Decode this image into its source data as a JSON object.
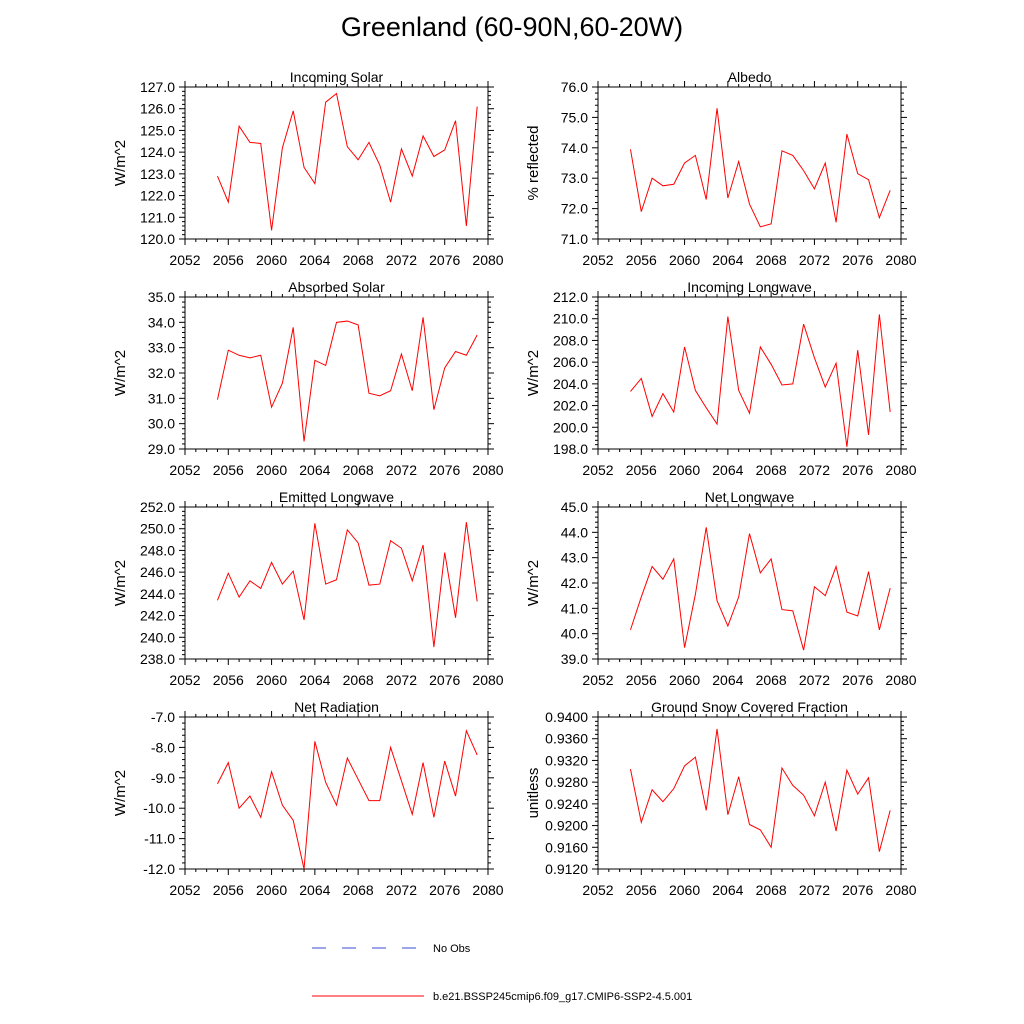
{
  "title": "Greenland (60-90N,60-20W)",
  "legend": {
    "obs_label": "No Obs",
    "model_label": "b.e21.BSSP245cmip6.f09_g17.CMIP6-SSP2-4.5.001",
    "obs_color": "#3b4bd6",
    "model_color": "#ff0000"
  },
  "chart_data": [
    {
      "type": "line",
      "title": "Incoming Solar",
      "ylabel": "W/m^2",
      "xlim": [
        2052,
        2080
      ],
      "ylim": [
        120.0,
        127.0
      ],
      "yticks": [
        120.0,
        121.0,
        122.0,
        123.0,
        124.0,
        125.0,
        126.0,
        127.0
      ],
      "xticks": [
        2052,
        2056,
        2060,
        2064,
        2068,
        2072,
        2076,
        2080
      ],
      "ytick_decimals": 1,
      "series": [
        {
          "x": [
            2055,
            2056,
            2057,
            2058,
            2059,
            2060,
            2061,
            2062,
            2063,
            2064,
            2065,
            2066,
            2067,
            2068,
            2069,
            2070,
            2071,
            2072,
            2073,
            2074,
            2075,
            2076,
            2077,
            2078,
            2079
          ],
          "values": [
            122.9,
            121.7,
            125.2,
            124.45,
            124.4,
            120.4,
            124.2,
            125.9,
            123.3,
            122.55,
            126.3,
            126.7,
            124.25,
            123.65,
            124.45,
            123.4,
            121.7,
            124.15,
            122.9,
            124.75,
            123.8,
            124.1,
            125.45,
            120.6,
            126.1
          ]
        }
      ]
    },
    {
      "type": "line",
      "title": "Albedo",
      "ylabel": "% reflected",
      "xlim": [
        2052,
        2080
      ],
      "ylim": [
        71.0,
        76.0
      ],
      "yticks": [
        71.0,
        72.0,
        73.0,
        74.0,
        75.0,
        76.0
      ],
      "xticks": [
        2052,
        2056,
        2060,
        2064,
        2068,
        2072,
        2076,
        2080
      ],
      "ytick_decimals": 1,
      "series": [
        {
          "x": [
            2055,
            2056,
            2057,
            2058,
            2059,
            2060,
            2061,
            2062,
            2063,
            2064,
            2065,
            2066,
            2067,
            2068,
            2069,
            2070,
            2071,
            2072,
            2073,
            2074,
            2075,
            2076,
            2077,
            2078,
            2079
          ],
          "values": [
            73.95,
            71.9,
            73.0,
            72.75,
            72.8,
            73.5,
            73.75,
            72.3,
            75.3,
            72.35,
            73.55,
            72.15,
            71.4,
            71.5,
            73.9,
            73.75,
            73.25,
            72.65,
            73.5,
            71.55,
            74.45,
            73.15,
            72.95,
            71.7,
            72.6
          ]
        }
      ]
    },
    {
      "type": "line",
      "title": "Absorbed Solar",
      "ylabel": "W/m^2",
      "xlim": [
        2052,
        2080
      ],
      "ylim": [
        29.0,
        35.0
      ],
      "yticks": [
        29.0,
        30.0,
        31.0,
        32.0,
        33.0,
        34.0,
        35.0
      ],
      "xticks": [
        2052,
        2056,
        2060,
        2064,
        2068,
        2072,
        2076,
        2080
      ],
      "ytick_decimals": 1,
      "series": [
        {
          "x": [
            2055,
            2056,
            2057,
            2058,
            2059,
            2060,
            2061,
            2062,
            2063,
            2064,
            2065,
            2066,
            2067,
            2068,
            2069,
            2070,
            2071,
            2072,
            2073,
            2074,
            2075,
            2076,
            2077,
            2078,
            2079
          ],
          "values": [
            30.95,
            32.9,
            32.7,
            32.6,
            32.7,
            30.65,
            31.6,
            33.8,
            29.3,
            32.5,
            32.3,
            34.0,
            34.05,
            33.9,
            31.2,
            31.1,
            31.3,
            32.75,
            31.3,
            34.2,
            30.55,
            32.2,
            32.85,
            32.7,
            33.5
          ]
        }
      ]
    },
    {
      "type": "line",
      "title": "Incoming Longwave",
      "ylabel": "W/m^2",
      "xlim": [
        2052,
        2080
      ],
      "ylim": [
        198.0,
        212.0
      ],
      "yticks": [
        198.0,
        200.0,
        202.0,
        204.0,
        206.0,
        208.0,
        210.0,
        212.0
      ],
      "xticks": [
        2052,
        2056,
        2060,
        2064,
        2068,
        2072,
        2076,
        2080
      ],
      "ytick_decimals": 1,
      "series": [
        {
          "x": [
            2055,
            2056,
            2057,
            2058,
            2059,
            2060,
            2061,
            2062,
            2063,
            2064,
            2065,
            2066,
            2067,
            2068,
            2069,
            2070,
            2071,
            2072,
            2073,
            2074,
            2075,
            2076,
            2077,
            2078,
            2079
          ],
          "values": [
            203.3,
            204.5,
            201.0,
            203.1,
            201.4,
            207.4,
            203.4,
            201.8,
            200.3,
            210.2,
            203.4,
            201.3,
            207.4,
            205.8,
            203.9,
            204.0,
            209.5,
            206.4,
            203.7,
            205.9,
            198.2,
            207.1,
            199.3,
            210.4,
            201.4
          ]
        }
      ]
    },
    {
      "type": "line",
      "title": "Emitted Longwave",
      "ylabel": "W/m^2",
      "xlim": [
        2052,
        2080
      ],
      "ylim": [
        238.0,
        252.0
      ],
      "yticks": [
        238.0,
        240.0,
        242.0,
        244.0,
        246.0,
        248.0,
        250.0,
        252.0
      ],
      "xticks": [
        2052,
        2056,
        2060,
        2064,
        2068,
        2072,
        2076,
        2080
      ],
      "ytick_decimals": 1,
      "series": [
        {
          "x": [
            2055,
            2056,
            2057,
            2058,
            2059,
            2060,
            2061,
            2062,
            2063,
            2064,
            2065,
            2066,
            2067,
            2068,
            2069,
            2070,
            2071,
            2072,
            2073,
            2074,
            2075,
            2076,
            2077,
            2078,
            2079
          ],
          "values": [
            243.4,
            245.9,
            243.7,
            245.2,
            244.5,
            246.9,
            244.9,
            246.1,
            241.6,
            250.5,
            244.9,
            245.3,
            249.9,
            248.7,
            244.8,
            244.9,
            248.9,
            248.2,
            245.2,
            248.5,
            239.1,
            247.8,
            241.8,
            250.6,
            243.3
          ]
        }
      ]
    },
    {
      "type": "line",
      "title": "Net Longwave",
      "ylabel": "W/m^2",
      "xlim": [
        2052,
        2080
      ],
      "ylim": [
        39.0,
        45.0
      ],
      "yticks": [
        39.0,
        40.0,
        41.0,
        42.0,
        43.0,
        44.0,
        45.0
      ],
      "xticks": [
        2052,
        2056,
        2060,
        2064,
        2068,
        2072,
        2076,
        2080
      ],
      "ytick_decimals": 1,
      "series": [
        {
          "x": [
            2055,
            2056,
            2057,
            2058,
            2059,
            2060,
            2061,
            2062,
            2063,
            2064,
            2065,
            2066,
            2067,
            2068,
            2069,
            2070,
            2071,
            2072,
            2073,
            2074,
            2075,
            2076,
            2077,
            2078,
            2079
          ],
          "values": [
            40.15,
            41.45,
            42.65,
            42.15,
            42.95,
            39.45,
            41.55,
            44.2,
            41.3,
            40.3,
            41.45,
            43.95,
            42.4,
            42.95,
            40.95,
            40.9,
            39.35,
            41.85,
            41.5,
            42.65,
            40.85,
            40.7,
            42.45,
            40.15,
            41.8
          ]
        }
      ]
    },
    {
      "type": "line",
      "title": "Net Radiation",
      "ylabel": "W/m^2",
      "xlim": [
        2052,
        2080
      ],
      "ylim": [
        -12.0,
        -7.0
      ],
      "yticks": [
        -12.0,
        -11.0,
        -10.0,
        -9.0,
        -8.0,
        -7.0
      ],
      "xticks": [
        2052,
        2056,
        2060,
        2064,
        2068,
        2072,
        2076,
        2080
      ],
      "ytick_decimals": 1,
      "series": [
        {
          "x": [
            2055,
            2056,
            2057,
            2058,
            2059,
            2060,
            2061,
            2062,
            2063,
            2064,
            2065,
            2066,
            2067,
            2068,
            2069,
            2070,
            2071,
            2072,
            2073,
            2074,
            2075,
            2076,
            2077,
            2078,
            2079
          ],
          "values": [
            -9.2,
            -8.5,
            -10.0,
            -9.6,
            -10.3,
            -8.8,
            -9.9,
            -10.4,
            -12.0,
            -7.8,
            -9.15,
            -9.9,
            -8.35,
            -9.05,
            -9.75,
            -9.75,
            -8.0,
            -9.1,
            -10.2,
            -8.5,
            -10.3,
            -8.45,
            -9.6,
            -7.45,
            -8.25
          ]
        }
      ]
    },
    {
      "type": "line",
      "title": "Ground Snow Covered Fraction",
      "ylabel": "unitless",
      "xlim": [
        2052,
        2080
      ],
      "ylim": [
        0.912,
        0.94
      ],
      "yticks": [
        0.912,
        0.916,
        0.92,
        0.924,
        0.928,
        0.932,
        0.936,
        0.94
      ],
      "xticks": [
        2052,
        2056,
        2060,
        2064,
        2068,
        2072,
        2076,
        2080
      ],
      "ytick_decimals": 4,
      "series": [
        {
          "x": [
            2055,
            2056,
            2057,
            2058,
            2059,
            2060,
            2061,
            2062,
            2063,
            2064,
            2065,
            2066,
            2067,
            2068,
            2069,
            2070,
            2071,
            2072,
            2073,
            2074,
            2075,
            2076,
            2077,
            2078,
            2079
          ],
          "values": [
            0.9304,
            0.9206,
            0.9266,
            0.9244,
            0.9268,
            0.931,
            0.9326,
            0.9228,
            0.9378,
            0.922,
            0.929,
            0.9202,
            0.9192,
            0.916,
            0.9306,
            0.9274,
            0.9256,
            0.9218,
            0.928,
            0.919,
            0.9302,
            0.9258,
            0.9288,
            0.9152,
            0.9228
          ]
        }
      ]
    }
  ]
}
